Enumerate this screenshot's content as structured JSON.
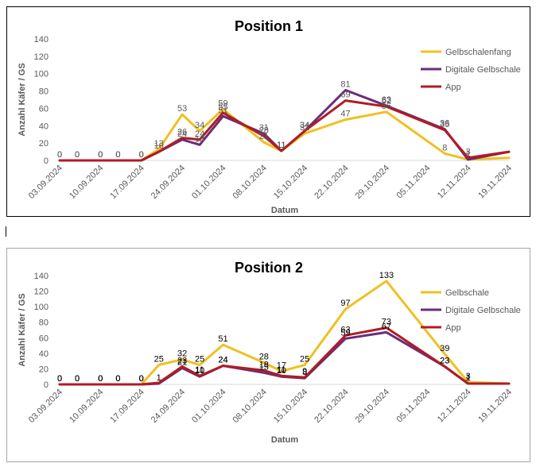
{
  "chart_data": [
    {
      "type": "line",
      "title": "Position 1",
      "xlabel": "Datum",
      "ylabel": "Anzahl Käfer / GS",
      "ylim": [
        0,
        140
      ],
      "yticks": [
        0,
        20,
        40,
        60,
        80,
        100,
        120,
        140
      ],
      "grid": false,
      "legend_position": "right",
      "label_color": "#595959",
      "x_ticks": [
        "03.09.2024",
        "10.09.2024",
        "17.09.2024",
        "24.09.2024",
        "01.10.2024",
        "08.10.2024",
        "15.10.2024",
        "22.10.2024",
        "29.10.2024",
        "05.11.2024",
        "12.11.2024",
        "19.11.2024"
      ],
      "x_range": [
        "2024-09-03",
        "2024-11-19"
      ],
      "series": [
        {
          "name": "Gelbschalenfang",
          "color": "#f0c020",
          "x": [
            "2024-09-03",
            "2024-09-06",
            "2024-09-10",
            "2024-09-13",
            "2024-09-17",
            "2024-09-20",
            "2024-09-24",
            "2024-09-27",
            "2024-10-01",
            "2024-10-08",
            "2024-10-11",
            "2024-10-15",
            "2024-10-22",
            "2024-10-29",
            "2024-11-08",
            "2024-11-12",
            "2024-11-19"
          ],
          "values": [
            0,
            0,
            0,
            0,
            0,
            13,
            53,
            34,
            59,
            21,
            11,
            31,
            47,
            56,
            8,
            1,
            3
          ],
          "labels": [
            "0",
            "0",
            "0",
            "0",
            "0",
            "13",
            "53",
            "34",
            "59",
            "21",
            "11",
            "31",
            "47",
            "56",
            "8",
            "1",
            ""
          ]
        },
        {
          "name": "Digitale Gelbschale",
          "color": "#6a2c7a",
          "x": [
            "2024-09-03",
            "2024-09-06",
            "2024-09-10",
            "2024-09-13",
            "2024-09-17",
            "2024-09-20",
            "2024-09-24",
            "2024-09-27",
            "2024-10-01",
            "2024-10-08",
            "2024-10-11",
            "2024-10-15",
            "2024-10-22",
            "2024-10-29",
            "2024-11-08",
            "2024-11-12",
            "2024-11-19"
          ],
          "values": [
            0,
            0,
            0,
            0,
            0,
            10,
            24,
            18,
            51,
            31,
            11,
            34,
            81,
            63,
            36,
            1,
            10
          ],
          "labels": [
            "0",
            "0",
            "0",
            "0",
            "0",
            "10",
            "24",
            "18",
            "51",
            "31",
            "11",
            "34",
            "81",
            "63",
            "36",
            "1",
            ""
          ]
        },
        {
          "name": "App",
          "color": "#b01c24",
          "x": [
            "2024-09-03",
            "2024-09-06",
            "2024-09-10",
            "2024-09-13",
            "2024-09-17",
            "2024-09-20",
            "2024-09-24",
            "2024-09-27",
            "2024-10-01",
            "2024-10-08",
            "2024-10-11",
            "2024-10-15",
            "2024-10-22",
            "2024-10-29",
            "2024-11-08",
            "2024-11-12",
            "2024-11-19"
          ],
          "values": [
            0,
            0,
            0,
            0,
            0,
            10,
            26,
            24,
            55,
            28,
            11,
            34,
            69,
            62,
            35,
            3,
            10
          ],
          "labels": [
            "0",
            "0",
            "0",
            "0",
            "0",
            "",
            "26",
            "24",
            "55",
            "28",
            "11",
            "34",
            "69",
            "62",
            "35",
            "3",
            ""
          ]
        }
      ]
    },
    {
      "type": "line",
      "title": "Position 2",
      "xlabel": "Datum",
      "ylabel": "Anzahl Käfer / GS",
      "ylim": [
        0,
        140
      ],
      "yticks": [
        0,
        20,
        40,
        60,
        80,
        100,
        120,
        140
      ],
      "grid": false,
      "legend_position": "right",
      "label_color": "#000000",
      "x_ticks": [
        "03.09.2024",
        "10.09.2024",
        "17.09.2024",
        "24.09.2024",
        "01.10.2024",
        "08.10.2024",
        "15.10.2024",
        "22.10.2024",
        "29.10.2024",
        "05.11.2024",
        "12.11.2024",
        "19.11.2024"
      ],
      "x_range": [
        "2024-09-03",
        "2024-11-19"
      ],
      "series": [
        {
          "name": "Gelbschale",
          "color": "#f0c020",
          "x": [
            "2024-09-03",
            "2024-09-06",
            "2024-09-10",
            "2024-09-13",
            "2024-09-17",
            "2024-09-20",
            "2024-09-24",
            "2024-09-27",
            "2024-10-01",
            "2024-10-08",
            "2024-10-11",
            "2024-10-15",
            "2024-10-22",
            "2024-10-29",
            "2024-11-08",
            "2024-11-12",
            "2024-11-19"
          ],
          "values": [
            0,
            0,
            0,
            0,
            0,
            25,
            32,
            25,
            51,
            28,
            17,
            25,
            97,
            133,
            39,
            3,
            1
          ],
          "labels": [
            "0",
            "0",
            "0",
            "0",
            "0",
            "25",
            "32",
            "25",
            "51",
            "28",
            "17",
            "25",
            "97",
            "133",
            "39",
            "3",
            ""
          ]
        },
        {
          "name": "Digitale Gelbschale",
          "color": "#6a2c7a",
          "x": [
            "2024-09-03",
            "2024-09-06",
            "2024-09-10",
            "2024-09-13",
            "2024-09-17",
            "2024-09-20",
            "2024-09-24",
            "2024-09-27",
            "2024-10-01",
            "2024-10-08",
            "2024-10-11",
            "2024-10-15",
            "2024-10-22",
            "2024-10-29",
            "2024-11-08",
            "2024-11-12",
            "2024-11-19"
          ],
          "values": [
            0,
            0,
            0,
            0,
            0,
            1,
            21,
            10,
            24,
            15,
            10,
            8,
            59,
            67,
            23,
            1,
            1
          ],
          "labels": [
            "0",
            "0",
            "0",
            "0",
            "0",
            "1",
            "21",
            "10",
            "24",
            "15",
            "10",
            "8",
            "59",
            "67",
            "23",
            "1",
            ""
          ]
        },
        {
          "name": "App",
          "color": "#b01c24",
          "x": [
            "2024-09-03",
            "2024-09-06",
            "2024-09-10",
            "2024-09-13",
            "2024-09-17",
            "2024-09-20",
            "2024-09-24",
            "2024-09-27",
            "2024-10-01",
            "2024-10-08",
            "2024-10-11",
            "2024-10-15",
            "2024-10-22",
            "2024-10-29",
            "2024-11-08",
            "2024-11-12",
            "2024-11-19"
          ],
          "values": [
            0,
            0,
            0,
            0,
            0,
            2,
            23,
            11,
            24,
            18,
            11,
            9,
            63,
            73,
            23,
            1,
            1
          ],
          "labels": [
            "0",
            "0",
            "0",
            "0",
            "0",
            "",
            "23",
            "11",
            "24",
            "18",
            "11",
            "9",
            "63",
            "73",
            "23",
            "1",
            ""
          ]
        }
      ]
    }
  ]
}
